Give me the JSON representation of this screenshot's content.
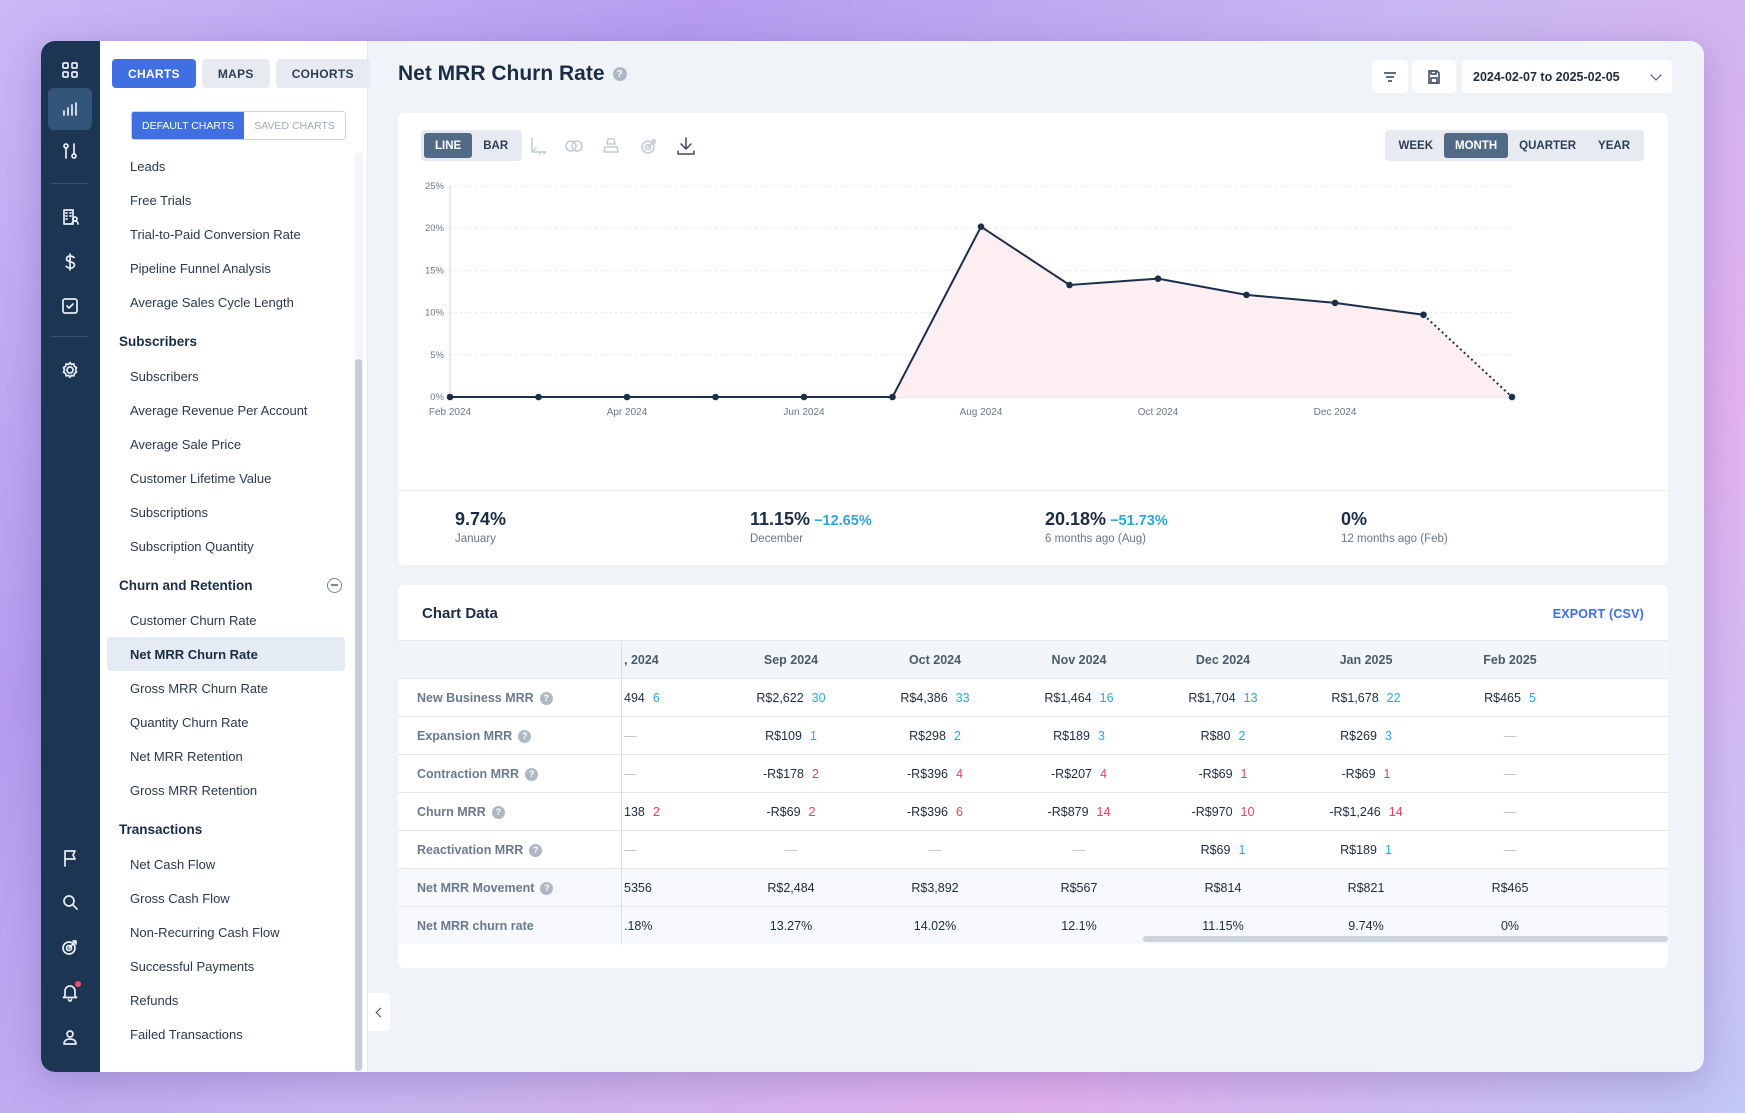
{
  "nav": {
    "top_tabs": [
      "CHARTS",
      "MAPS",
      "COHORTS"
    ],
    "sub_tabs": [
      "DEFAULT CHARTS",
      "SAVED CHARTS"
    ],
    "items_top": [
      "Leads",
      "Free Trials",
      "Trial-to-Paid Conversion Rate",
      "Pipeline Funnel Analysis",
      "Average Sales Cycle Length"
    ],
    "group_subscribers": "Subscribers",
    "items_subscribers": [
      "Subscribers",
      "Average Revenue Per Account",
      "Average Sale Price",
      "Customer Lifetime Value",
      "Subscriptions",
      "Subscription Quantity"
    ],
    "group_churn": "Churn and Retention",
    "items_churn": [
      "Customer Churn Rate",
      "Net MRR Churn Rate",
      "Gross MRR Churn Rate",
      "Quantity Churn Rate",
      "Net MRR Retention",
      "Gross MRR Retention"
    ],
    "group_transactions": "Transactions",
    "items_transactions": [
      "Net Cash Flow",
      "Gross Cash Flow",
      "Non-Recurring Cash Flow",
      "Successful Payments",
      "Refunds",
      "Failed Transactions"
    ]
  },
  "header": {
    "title": "Net MRR Churn Rate",
    "date_range": "2024-02-07 to 2025-02-05"
  },
  "chart_controls": {
    "types": [
      "LINE",
      "BAR"
    ],
    "intervals": [
      "WEEK",
      "MONTH",
      "QUARTER",
      "YEAR"
    ]
  },
  "chart_data": {
    "type": "area",
    "x": [
      "Feb 2024",
      "Mar 2024",
      "Apr 2024",
      "May 2024",
      "Jun 2024",
      "Jul 2024",
      "Aug 2024",
      "Sep 2024",
      "Oct 2024",
      "Nov 2024",
      "Dec 2024",
      "Jan 2025",
      "Feb 2025"
    ],
    "series": [
      {
        "values": [
          0,
          0,
          0,
          0,
          0,
          0,
          20.18,
          13.27,
          14.02,
          12.1,
          11.15,
          9.74,
          0
        ]
      }
    ],
    "x_tick_labels": [
      "Feb 2024",
      "Apr 2024",
      "Jun 2024",
      "Aug 2024",
      "Oct 2024",
      "Dec 2024"
    ],
    "y_tick_labels": [
      "0%",
      "5%",
      "10%",
      "15%",
      "20%",
      "25%"
    ],
    "ylim": [
      0,
      25
    ],
    "grid": true,
    "line_color": "#1c2f4a",
    "fill_color": "#fdeef1"
  },
  "stats": [
    {
      "value": "9.74%",
      "delta": "",
      "label": "January"
    },
    {
      "value": "11.15%",
      "delta": "−12.65%",
      "label": "December"
    },
    {
      "value": "20.18%",
      "delta": "−51.73%",
      "label": "6 months ago (Aug)"
    },
    {
      "value": "0%",
      "delta": "",
      "label": "12 months ago (Feb)"
    }
  ],
  "table": {
    "title": "Chart Data",
    "export_label": "EXPORT (CSV)",
    "columns": [
      ", 2024",
      "Sep 2024",
      "Oct 2024",
      "Nov 2024",
      "Dec 2024",
      "Jan 2025",
      "Feb 2025"
    ],
    "rows": [
      {
        "label": "New Business MRR",
        "help": true,
        "cells": [
          [
            "494",
            "6",
            "pos"
          ],
          [
            "R$2,622",
            "30",
            "pos"
          ],
          [
            "R$4,386",
            "33",
            "pos"
          ],
          [
            "R$1,464",
            "16",
            "pos"
          ],
          [
            "R$1,704",
            "13",
            "pos"
          ],
          [
            "R$1,678",
            "22",
            "pos"
          ],
          [
            "R$465",
            "5",
            "pos"
          ]
        ]
      },
      {
        "label": "Expansion MRR",
        "help": true,
        "cells": [
          [
            "—",
            "",
            ""
          ],
          [
            "R$109",
            "1",
            "pos"
          ],
          [
            "R$298",
            "2",
            "pos"
          ],
          [
            "R$189",
            "3",
            "pos"
          ],
          [
            "R$80",
            "2",
            "pos"
          ],
          [
            "R$269",
            "3",
            "pos"
          ],
          [
            "—",
            "",
            ""
          ]
        ]
      },
      {
        "label": "Contraction MRR",
        "help": true,
        "cells": [
          [
            "—",
            "",
            ""
          ],
          [
            "-R$178",
            "2",
            "neg"
          ],
          [
            "-R$396",
            "4",
            "neg"
          ],
          [
            "-R$207",
            "4",
            "neg"
          ],
          [
            "-R$69",
            "1",
            "neg"
          ],
          [
            "-R$69",
            "1",
            "neg"
          ],
          [
            "—",
            "",
            ""
          ]
        ]
      },
      {
        "label": "Churn MRR",
        "help": true,
        "cells": [
          [
            "138",
            "2",
            "neg"
          ],
          [
            "-R$69",
            "2",
            "neg"
          ],
          [
            "-R$396",
            "6",
            "neg"
          ],
          [
            "-R$879",
            "14",
            "neg"
          ],
          [
            "-R$970",
            "10",
            "neg"
          ],
          [
            "-R$1,246",
            "14",
            "neg"
          ],
          [
            "—",
            "",
            ""
          ]
        ]
      },
      {
        "label": "Reactivation MRR",
        "help": true,
        "cells": [
          [
            "—",
            "",
            ""
          ],
          [
            "—",
            "",
            ""
          ],
          [
            "—",
            "",
            ""
          ],
          [
            "—",
            "",
            ""
          ],
          [
            "R$69",
            "1",
            "pos"
          ],
          [
            "R$189",
            "1",
            "pos"
          ],
          [
            "—",
            "",
            ""
          ]
        ]
      },
      {
        "label": "Net MRR Movement",
        "help": true,
        "cells": [
          [
            "5356",
            "",
            ""
          ],
          [
            "R$2,484",
            "",
            ""
          ],
          [
            "R$3,892",
            "",
            ""
          ],
          [
            "R$567",
            "",
            ""
          ],
          [
            "R$814",
            "",
            ""
          ],
          [
            "R$821",
            "",
            ""
          ],
          [
            "R$465",
            "",
            ""
          ]
        ]
      },
      {
        "label": "Net MRR churn rate",
        "help": false,
        "cells": [
          [
            ".18%",
            "",
            ""
          ],
          [
            "13.27%",
            "",
            ""
          ],
          [
            "14.02%",
            "",
            ""
          ],
          [
            "12.1%",
            "",
            ""
          ],
          [
            "11.15%",
            "",
            ""
          ],
          [
            "9.74%",
            "",
            ""
          ],
          [
            "0%",
            "",
            ""
          ]
        ]
      }
    ]
  },
  "colors": {
    "accent": "#3f6fe0",
    "rail": "#1b3553",
    "positive": "#2fa8d8",
    "negative": "#e8435d"
  }
}
